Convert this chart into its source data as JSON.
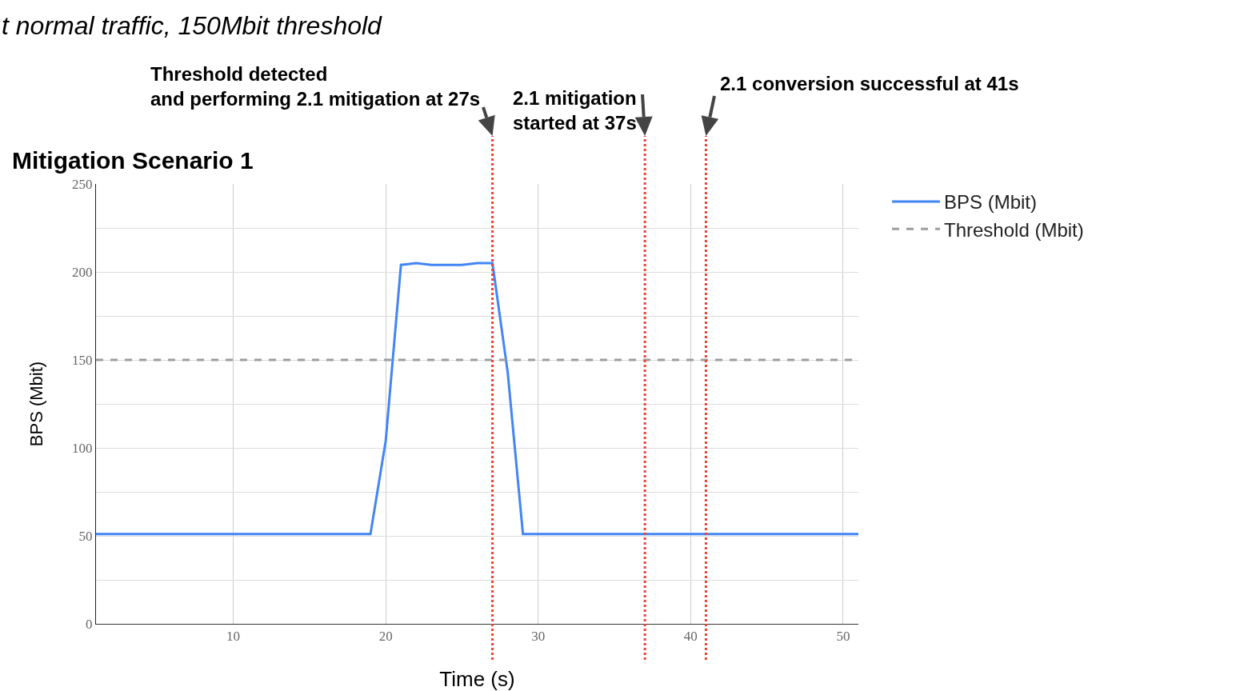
{
  "chart_data": {
    "type": "line",
    "title": "Mitigation Scenario 1",
    "xlabel": "Time (s)",
    "ylabel": "BPS (Mbit)",
    "annotations": [
      "t normal traffic, 150Mbit threshold"
    ],
    "x": [
      1,
      19,
      20,
      21,
      22,
      23,
      24,
      25,
      26,
      27,
      28,
      29,
      51
    ],
    "series": [
      {
        "name": "BPS (Mbit)",
        "color": "#4285f4",
        "values": [
          51,
          51,
          104,
          204,
          205,
          204,
          204,
          204,
          205,
          205,
          143,
          51,
          51
        ]
      },
      {
        "name": "Threshold (Mbit)",
        "color": "#9e9e9e",
        "x": [
          1,
          51
        ],
        "values": [
          150,
          150
        ],
        "line_style": "dashed"
      }
    ],
    "xlim": [
      1,
      51
    ],
    "xticks": [
      10,
      20,
      30,
      40,
      50
    ],
    "ylim": [
      0,
      250
    ],
    "yticks": [
      0,
      {
        "value": 25,
        "label": null
      },
      50,
      {
        "value": 75,
        "label": null
      },
      100,
      {
        "value": 125,
        "label": null
      },
      150,
      {
        "value": 175,
        "label": null
      },
      200,
      {
        "value": 225,
        "label": null
      },
      250
    ],
    "ref_lines": [
      {
        "axis": "x",
        "value": 27,
        "label": "Threshold detected\nand performing 2.1 mitigation at 27s",
        "color": "#ea4335",
        "line_style": "dotted"
      },
      {
        "axis": "x",
        "value": 37,
        "label": "2.1 mitigation started at 37s",
        "color": "#ea4335",
        "line_style": "dotted"
      },
      {
        "axis": "x",
        "value": 41,
        "label": "2.1 conversion successful at 41s",
        "color": "#ea4335",
        "line_style": "dotted"
      }
    ],
    "grid": true,
    "legend": "top right",
    "marker": "none",
    "line_style": "solid"
  }
}
